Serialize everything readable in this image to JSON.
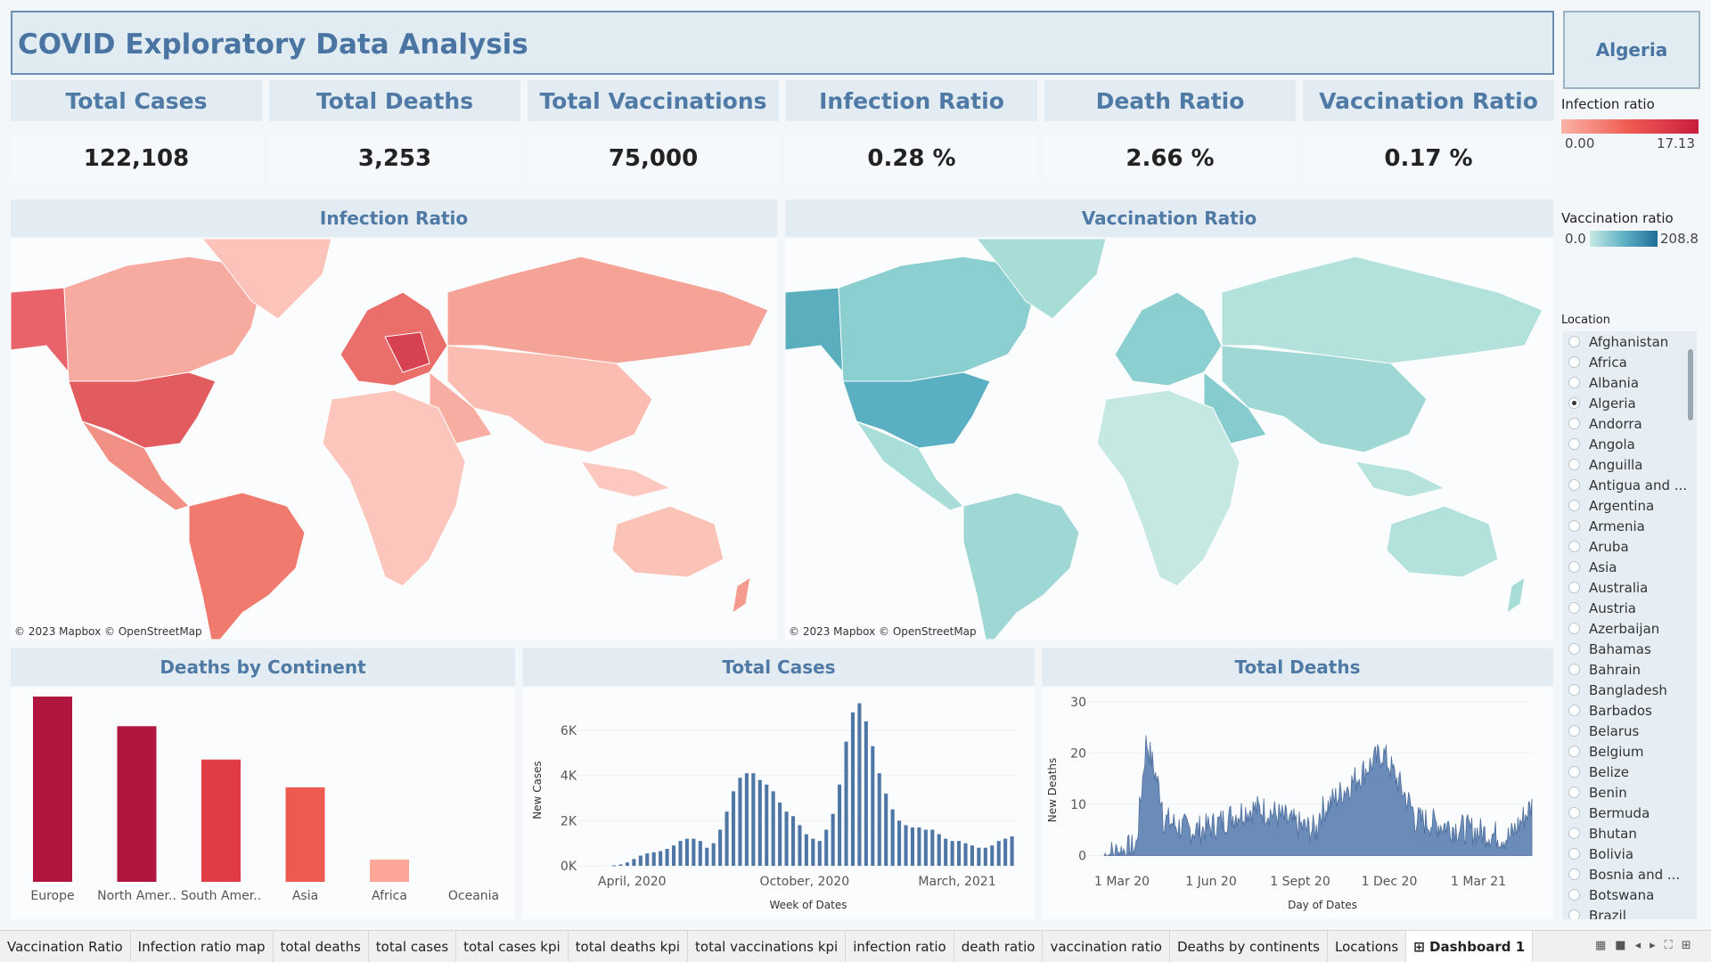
{
  "title": "COVID Exploratory Data Analysis",
  "selected_location": "Algeria",
  "kpis": [
    {
      "label": "Total Cases",
      "value": "122,108"
    },
    {
      "label": "Total Deaths",
      "value": "3,253"
    },
    {
      "label": "Total Vaccinations",
      "value": "75,000"
    },
    {
      "label": "Infection Ratio",
      "value": "0.28 %"
    },
    {
      "label": "Death Ratio",
      "value": "2.66 %"
    },
    {
      "label": "Vaccination Ratio",
      "value": "0.17 %"
    }
  ],
  "legends": {
    "infection": {
      "title": "Infection ratio",
      "min": "0.00",
      "max": "17.13",
      "color_low": "#fbb3a6",
      "color_high": "#c81d3f"
    },
    "vaccination": {
      "title": "Vaccination ratio",
      "min": "0.0",
      "max": "208.8",
      "color_low": "#c7e9e4",
      "color_high": "#1e6f97"
    }
  },
  "maps": {
    "infection_title": "Infection Ratio",
    "vaccination_title": "Vaccination Ratio",
    "attribution": "© 2023 Mapbox © OpenStreetMap"
  },
  "location_filter": {
    "title": "Location",
    "items": [
      "Afghanistan",
      "Africa",
      "Albania",
      "Algeria",
      "Andorra",
      "Angola",
      "Anguilla",
      "Antigua and ...",
      "Argentina",
      "Armenia",
      "Aruba",
      "Asia",
      "Australia",
      "Austria",
      "Azerbaijan",
      "Bahamas",
      "Bahrain",
      "Bangladesh",
      "Barbados",
      "Belarus",
      "Belgium",
      "Belize",
      "Benin",
      "Bermuda",
      "Bhutan",
      "Bolivia",
      "Bosnia and ...",
      "Botswana",
      "Brazil"
    ],
    "selected": "Algeria"
  },
  "deaths_by_continent": {
    "title": "Deaths by Continent",
    "chart_data": {
      "type": "bar",
      "categories": [
        "Europe",
        "North Amer..",
        "South Amer..",
        "Asia",
        "Africa",
        "Oceania"
      ],
      "values": [
        100,
        84,
        66,
        51,
        12,
        0
      ],
      "colors": [
        "#b0163e",
        "#b0163e",
        "#e03c45",
        "#ef5a50",
        "#fba697",
        "#fdd2c7"
      ]
    }
  },
  "total_cases_chart": {
    "title": "Total Cases",
    "chart_data": {
      "type": "bar",
      "xlabel": "Week of Dates",
      "ylabel": "New Cases",
      "y_ticks": [
        "0K",
        "2K",
        "4K",
        "6K"
      ],
      "ylim": [
        0,
        7300
      ],
      "x_ticks": [
        {
          "label": "April, 2020",
          "index": 3
        },
        {
          "label": "October, 2020",
          "index": 29
        },
        {
          "label": "March, 2021",
          "index": 52
        }
      ],
      "values": [
        20,
        60,
        150,
        300,
        450,
        550,
        600,
        650,
        750,
        900,
        1100,
        1200,
        1200,
        1100,
        800,
        1000,
        1600,
        2400,
        3300,
        3900,
        4100,
        4100,
        3800,
        3600,
        3300,
        2800,
        2400,
        2200,
        1800,
        1400,
        1200,
        1100,
        1600,
        2300,
        3600,
        5500,
        6800,
        7200,
        6400,
        5300,
        4100,
        3200,
        2500,
        2000,
        1800,
        1700,
        1700,
        1600,
        1600,
        1400,
        1200,
        1100,
        1100,
        1000,
        900,
        800,
        800,
        900,
        1100,
        1200,
        1300
      ]
    }
  },
  "total_deaths_chart": {
    "title": "Total Deaths",
    "chart_data": {
      "type": "area",
      "xlabel": "Day of Dates",
      "ylabel": "New Deaths",
      "y_ticks": [
        "0",
        "10",
        "20",
        "30"
      ],
      "ylim": [
        -2,
        31
      ],
      "x_ticks": [
        "1 Mar 20",
        "1 Jun 20",
        "1 Sept 20",
        "1 Dec 20",
        "1 Mar 21"
      ],
      "series_color": "#6b8bb8"
    }
  },
  "tabs": [
    "Vaccination Ratio",
    "Infection ratio map",
    "total deaths",
    "total  cases",
    "total cases kpi",
    "total deaths kpi",
    "total vaccinations kpi",
    "infection ratio",
    "death ratio",
    "vaccination ratio",
    "Deaths by continents",
    "Locations",
    "Dashboard 1"
  ],
  "active_tab": "Dashboard 1"
}
